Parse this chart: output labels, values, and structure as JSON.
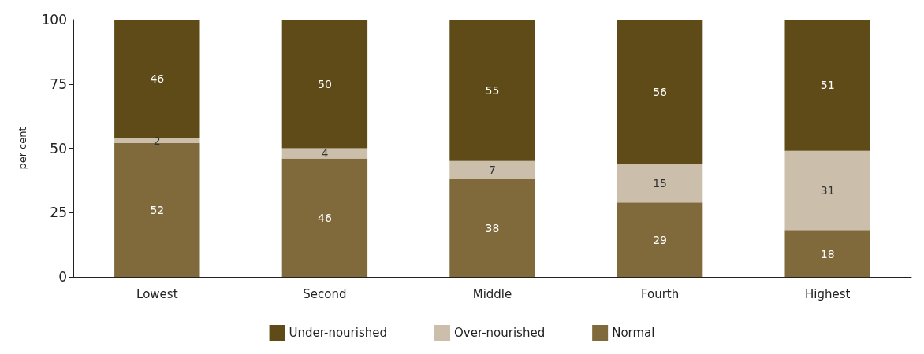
{
  "chart_data": {
    "type": "bar",
    "stacked": true,
    "ylabel": "per cent",
    "categories": [
      "Lowest",
      "Second",
      "Middle",
      "Fourth",
      "Highest"
    ],
    "series": [
      {
        "name": "Normal",
        "color": "#806a3c",
        "values": [
          52,
          46,
          38,
          29,
          18
        ]
      },
      {
        "name": "Over-nourished",
        "color": "#cbbfab",
        "values": [
          2,
          4,
          7,
          15,
          31
        ]
      },
      {
        "name": "Under-nourished",
        "color": "#5f4b17",
        "values": [
          46,
          50,
          55,
          56,
          51
        ]
      }
    ],
    "ylim": [
      0,
      100
    ],
    "yticks": [
      0,
      25,
      50,
      75,
      100
    ],
    "grid": false,
    "legend": "bottom",
    "data_labels": true
  }
}
